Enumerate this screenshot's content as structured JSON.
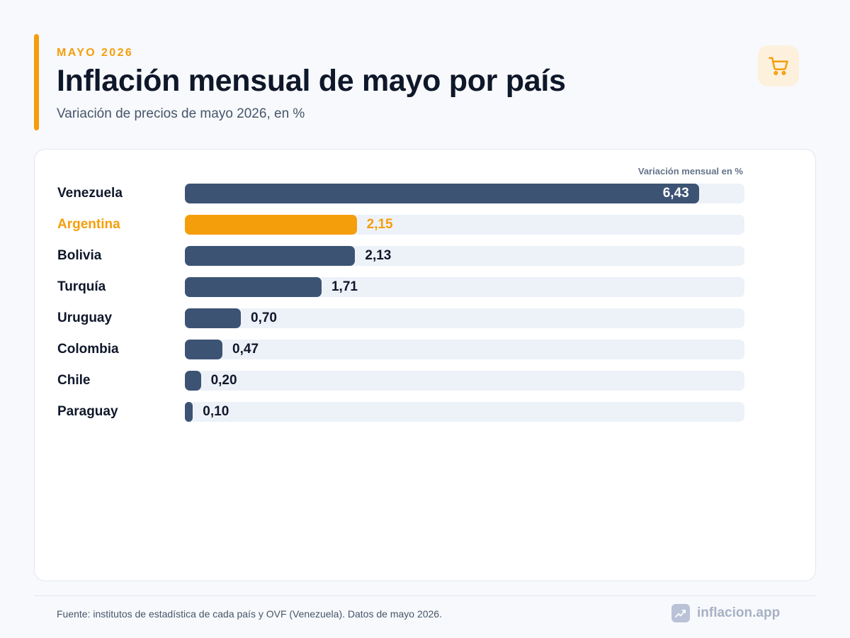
{
  "header": {
    "eyebrow": "MAYO 2026",
    "title": "Inflación mensual de mayo por país",
    "subtitle": "Variación de precios de mayo 2026, en %",
    "icon": "shopping-cart-icon"
  },
  "chart_data": {
    "type": "bar",
    "orientation": "horizontal",
    "axis_caption": "Variación mensual en %",
    "categories": [
      "Venezuela",
      "Argentina",
      "Bolivia",
      "Turquía",
      "Uruguay",
      "Colombia",
      "Chile",
      "Paraguay"
    ],
    "values": [
      6.43,
      2.15,
      2.13,
      1.71,
      0.7,
      0.47,
      0.2,
      0.1
    ],
    "value_labels": [
      "6,43",
      "2,15",
      "2,13",
      "1,71",
      "0,70",
      "0,47",
      "0,20",
      "0,10"
    ],
    "highlight": "Argentina",
    "xlim": [
      0,
      7
    ],
    "grid": false,
    "legend": "none"
  },
  "colors": {
    "accent": "#f59e0b",
    "bar": "#3c5374",
    "track": "#edf2f9"
  },
  "footer": {
    "source": "Fuente: institutos de estadística de cada país y OVF (Venezuela). Datos de mayo 2026.",
    "brand": "inflacion.app",
    "brand_icon": "chart-logo-icon"
  }
}
